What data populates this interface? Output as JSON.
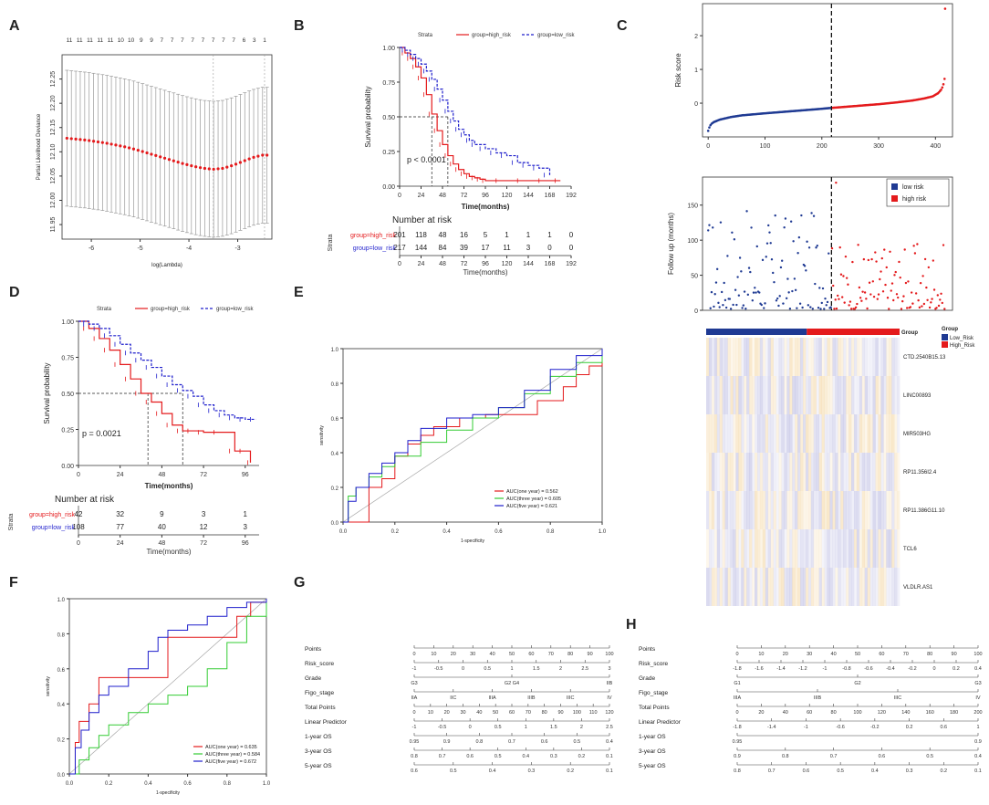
{
  "panels": {
    "A": {
      "label": "A"
    },
    "B": {
      "label": "B"
    },
    "C": {
      "label": "C"
    },
    "D": {
      "label": "D"
    },
    "E": {
      "label": "E"
    },
    "F": {
      "label": "F"
    },
    "G": {
      "label": "G"
    },
    "H": {
      "label": "H"
    }
  },
  "colors": {
    "high": "#e41a1c",
    "low": "#1f1fcc",
    "green": "#33cc33",
    "navy": "#1f3a93",
    "gray": "#9a9a9a"
  },
  "chart_data": [
    {
      "id": "A",
      "type": "line",
      "xlabel": "log(Lambda)",
      "ylabel": "Partial Likelihood Deviance",
      "xlim": [
        -6.6,
        -2.3
      ],
      "ylim": [
        11.92,
        12.3
      ],
      "xticks": [
        "-6",
        "-5",
        "-4",
        "-3"
      ],
      "xtick_values": [
        -6,
        -5,
        -4,
        -3
      ],
      "yticks": [
        "11.95",
        "12.00",
        "12.05",
        "12.10",
        "12.15",
        "12.20",
        "12.25"
      ],
      "ytick_values": [
        11.95,
        12.0,
        12.05,
        12.1,
        12.15,
        12.2,
        12.25
      ],
      "top_counts": [
        "11",
        "11",
        "11",
        "11",
        "11",
        "10",
        "10",
        "9",
        "9",
        "7",
        "7",
        "7",
        "7",
        "7",
        "7",
        "7",
        "7",
        "6",
        "3",
        "1"
      ],
      "x": [
        -6.5,
        -6.3,
        -6.1,
        -5.9,
        -5.7,
        -5.5,
        -5.3,
        -5.1,
        -4.9,
        -4.7,
        -4.5,
        -4.3,
        -4.1,
        -3.9,
        -3.7,
        -3.5,
        -3.3,
        -3.1,
        -2.9,
        -2.7,
        -2.5,
        -2.4
      ],
      "y": [
        12.128,
        12.126,
        12.124,
        12.121,
        12.118,
        12.114,
        12.11,
        12.105,
        12.099,
        12.093,
        12.087,
        12.081,
        12.075,
        12.07,
        12.066,
        12.064,
        12.066,
        12.072,
        12.08,
        12.088,
        12.093,
        12.093
      ],
      "err": 0.14,
      "vlines": [
        -3.5,
        -2.45
      ]
    },
    {
      "id": "B",
      "type": "line",
      "subtype": "kaplan-meier",
      "legend_title": "Strata",
      "legend": [
        "group=high_risk",
        "group=low_risk"
      ],
      "xlabel": "Time(months)",
      "ylabel": "Survival probability",
      "xlim": [
        0,
        192
      ],
      "ylim": [
        0,
        1
      ],
      "xticks": [
        "0",
        "24",
        "48",
        "72",
        "96",
        "120",
        "144",
        "168",
        "192"
      ],
      "xtick_values": [
        0,
        24,
        48,
        72,
        96,
        120,
        144,
        168,
        192
      ],
      "yticks": [
        "0.00",
        "0.25",
        "0.50",
        "0.75",
        "1.00"
      ],
      "ytick_values": [
        0,
        0.25,
        0.5,
        0.75,
        1
      ],
      "pvalue": "p < 0.0001",
      "series": [
        {
          "name": "group=high_risk",
          "x": [
            0,
            6,
            12,
            18,
            24,
            30,
            36,
            42,
            48,
            54,
            60,
            66,
            72,
            78,
            84,
            90,
            96,
            120,
            144,
            168,
            180
          ],
          "y": [
            1.0,
            0.96,
            0.92,
            0.86,
            0.78,
            0.66,
            0.52,
            0.4,
            0.3,
            0.22,
            0.16,
            0.12,
            0.09,
            0.07,
            0.06,
            0.05,
            0.04,
            0.04,
            0.04,
            0.04,
            0.04
          ]
        },
        {
          "name": "group=low_risk",
          "x": [
            0,
            6,
            12,
            18,
            24,
            30,
            36,
            42,
            48,
            54,
            60,
            66,
            72,
            78,
            84,
            96,
            108,
            120,
            132,
            144,
            156,
            168
          ],
          "y": [
            1.0,
            0.98,
            0.95,
            0.92,
            0.88,
            0.83,
            0.77,
            0.7,
            0.62,
            0.54,
            0.47,
            0.41,
            0.37,
            0.33,
            0.3,
            0.27,
            0.24,
            0.22,
            0.17,
            0.15,
            0.13,
            0.08
          ]
        }
      ],
      "risk_table": {
        "title": "Number at risk",
        "strata_label": "Strata",
        "xlabel": "Time(months)",
        "rows": [
          {
            "name": "group=high_risk",
            "values": [
              "201",
              "118",
              "48",
              "16",
              "5",
              "1",
              "1",
              "1",
              "0"
            ]
          },
          {
            "name": "group=low_risk",
            "values": [
              "217",
              "144",
              "84",
              "39",
              "17",
              "11",
              "3",
              "0",
              "0"
            ]
          }
        ]
      }
    },
    {
      "id": "C-risk",
      "type": "scatter",
      "ylabel": "Risk score",
      "xlim": [
        -10,
        430
      ],
      "ylim": [
        -1.0,
        2.95
      ],
      "xticks": [
        "0",
        "100",
        "200",
        "300",
        "400"
      ],
      "xtick_values": [
        0,
        100,
        200,
        300,
        400
      ],
      "yticks": [
        "0",
        "1",
        "2"
      ],
      "ytick_values": [
        0,
        1,
        2
      ],
      "cutoff": 217,
      "x": [
        0,
        2,
        5,
        10,
        20,
        40,
        60,
        80,
        100,
        130,
        160,
        190,
        217,
        240,
        270,
        300,
        330,
        360,
        380,
        395,
        405,
        410,
        413,
        415,
        416,
        417
      ],
      "y": [
        -0.82,
        -0.72,
        -0.62,
        -0.56,
        -0.49,
        -0.41,
        -0.36,
        -0.33,
        -0.3,
        -0.26,
        -0.22,
        -0.18,
        -0.14,
        -0.11,
        -0.07,
        -0.03,
        0.02,
        0.08,
        0.14,
        0.2,
        0.3,
        0.4,
        0.5,
        0.62,
        0.72,
        2.8
      ]
    },
    {
      "id": "C-followup",
      "type": "scatter",
      "ylabel": "Follow up (months)",
      "xlim": [
        -10,
        430
      ],
      "ylim": [
        0,
        190
      ],
      "yticks": [
        "0",
        "50",
        "100",
        "150"
      ],
      "ytick_values": [
        0,
        50,
        100,
        150
      ],
      "legend": [
        "low risk",
        "high risk"
      ],
      "cutoff": 217
    },
    {
      "id": "C-heatmap",
      "type": "heatmap",
      "group_title": "Group",
      "groups": [
        "Low_Risk",
        "High_Risk"
      ],
      "rows": [
        "CTD.2540B15.13",
        "LINC00893",
        "MIR503HG",
        "RP11.356I2.4",
        "RP11.386G11.10",
        "TCL6",
        "VLDLR.AS1"
      ]
    },
    {
      "id": "D",
      "type": "line",
      "subtype": "kaplan-meier",
      "legend_title": "Strata",
      "legend": [
        "group=high_risk",
        "group=low_risk"
      ],
      "xlabel": "Time(months)",
      "ylabel": "Survival probability",
      "xlim": [
        0,
        104
      ],
      "ylim": [
        0,
        1
      ],
      "xticks": [
        "0",
        "24",
        "48",
        "72",
        "96"
      ],
      "xtick_values": [
        0,
        24,
        48,
        72,
        96
      ],
      "yticks": [
        "0.00",
        "0.25",
        "0.50",
        "0.75",
        "1.00"
      ],
      "ytick_values": [
        0,
        0.25,
        0.5,
        0.75,
        1
      ],
      "pvalue": "p = 0.0021",
      "series": [
        {
          "name": "group=high_risk",
          "x": [
            0,
            6,
            12,
            18,
            24,
            30,
            36,
            42,
            48,
            54,
            60,
            66,
            72,
            84,
            90,
            96,
            99
          ],
          "y": [
            1.0,
            0.95,
            0.88,
            0.8,
            0.7,
            0.6,
            0.5,
            0.44,
            0.36,
            0.28,
            0.24,
            0.24,
            0.23,
            0.23,
            0.1,
            0.1,
            0.02
          ]
        },
        {
          "name": "group=low_risk",
          "x": [
            0,
            6,
            12,
            18,
            24,
            30,
            36,
            42,
            48,
            54,
            60,
            66,
            72,
            78,
            84,
            90,
            96,
            102
          ],
          "y": [
            1.0,
            0.98,
            0.95,
            0.9,
            0.84,
            0.78,
            0.73,
            0.68,
            0.62,
            0.56,
            0.52,
            0.48,
            0.42,
            0.38,
            0.35,
            0.33,
            0.32,
            0.32
          ]
        }
      ],
      "risk_table": {
        "title": "Number at risk",
        "strata_label": "Strata",
        "xlabel": "Time(months)",
        "rows": [
          {
            "name": "group=high_risk",
            "values": [
              "42",
              "32",
              "9",
              "3",
              "1"
            ]
          },
          {
            "name": "group=low_risk",
            "values": [
              "108",
              "77",
              "40",
              "12",
              "3"
            ]
          }
        ]
      }
    },
    {
      "id": "E",
      "type": "line",
      "subtype": "roc",
      "xlabel": "1-specificity",
      "ylabel": "sensitivity",
      "xlim": [
        0,
        1
      ],
      "ylim": [
        0,
        1
      ],
      "xticks": [
        "0.0",
        "0.2",
        "0.4",
        "0.6",
        "0.8",
        "1.0"
      ],
      "xtick_values": [
        0,
        0.2,
        0.4,
        0.6,
        0.8,
        1
      ],
      "yticks": [
        "0.0",
        "0.2",
        "0.4",
        "0.6",
        "0.8",
        "1.0"
      ],
      "ytick_values": [
        0,
        0.2,
        0.4,
        0.6,
        0.8,
        1
      ],
      "series": [
        {
          "name": "AUC(one year) = 0.562",
          "color": "#e41a1c",
          "x": [
            0,
            0.05,
            0.1,
            0.1,
            0.15,
            0.2,
            0.25,
            0.3,
            0.35,
            0.45,
            0.55,
            0.65,
            0.75,
            0.85,
            0.9,
            0.95,
            1
          ],
          "y": [
            0,
            0,
            0.05,
            0.2,
            0.25,
            0.38,
            0.45,
            0.5,
            0.55,
            0.6,
            0.62,
            0.62,
            0.7,
            0.78,
            0.85,
            0.9,
            1
          ]
        },
        {
          "name": "AUC(three year) = 0.605",
          "color": "#33cc33",
          "x": [
            0,
            0.02,
            0.05,
            0.1,
            0.15,
            0.2,
            0.3,
            0.4,
            0.5,
            0.6,
            0.7,
            0.8,
            0.9,
            1
          ],
          "y": [
            0,
            0.15,
            0.2,
            0.26,
            0.32,
            0.38,
            0.46,
            0.53,
            0.6,
            0.66,
            0.74,
            0.84,
            0.92,
            1
          ]
        },
        {
          "name": "AUC(five year) = 0.621",
          "color": "#1f1fcc",
          "x": [
            0,
            0.02,
            0.05,
            0.1,
            0.15,
            0.2,
            0.25,
            0.3,
            0.4,
            0.5,
            0.6,
            0.7,
            0.8,
            0.9,
            1
          ],
          "y": [
            0,
            0.12,
            0.2,
            0.28,
            0.34,
            0.4,
            0.47,
            0.54,
            0.6,
            0.62,
            0.66,
            0.76,
            0.88,
            0.96,
            1
          ]
        }
      ]
    },
    {
      "id": "F",
      "type": "line",
      "subtype": "roc",
      "xlabel": "1-specificity",
      "ylabel": "sensitivity",
      "xlim": [
        0,
        1
      ],
      "ylim": [
        0,
        1
      ],
      "xticks": [
        "0.0",
        "0.2",
        "0.4",
        "0.6",
        "0.8",
        "1.0"
      ],
      "xtick_values": [
        0,
        0.2,
        0.4,
        0.6,
        0.8,
        1
      ],
      "yticks": [
        "0.0",
        "0.2",
        "0.4",
        "0.6",
        "0.8",
        "1.0"
      ],
      "ytick_values": [
        0,
        0.2,
        0.4,
        0.6,
        0.8,
        1
      ],
      "series": [
        {
          "name": "AUC(one year) = 0.635",
          "color": "#e41a1c",
          "x": [
            0,
            0.03,
            0.03,
            0.05,
            0.05,
            0.1,
            0.1,
            0.15,
            0.15,
            0.3,
            0.3,
            0.5,
            0.5,
            0.85,
            0.85,
            0.92,
            1
          ],
          "y": [
            0,
            0,
            0.18,
            0.18,
            0.3,
            0.3,
            0.4,
            0.4,
            0.55,
            0.55,
            0.55,
            0.75,
            0.78,
            0.78,
            0.9,
            0.98,
            1
          ]
        },
        {
          "name": "AUC(three year) = 0.584",
          "color": "#33cc33",
          "x": [
            0,
            0.05,
            0.1,
            0.15,
            0.2,
            0.3,
            0.4,
            0.5,
            0.6,
            0.7,
            0.8,
            0.9,
            1
          ],
          "y": [
            0,
            0.08,
            0.15,
            0.22,
            0.28,
            0.35,
            0.4,
            0.45,
            0.5,
            0.6,
            0.75,
            0.9,
            1
          ]
        },
        {
          "name": "AUC(five year) = 0.672",
          "color": "#1f1fcc",
          "x": [
            0,
            0.03,
            0.06,
            0.1,
            0.15,
            0.2,
            0.3,
            0.4,
            0.45,
            0.5,
            0.6,
            0.7,
            0.8,
            0.9,
            1
          ],
          "y": [
            0,
            0.15,
            0.25,
            0.35,
            0.45,
            0.5,
            0.6,
            0.7,
            0.78,
            0.82,
            0.85,
            0.9,
            0.95,
            0.98,
            1
          ]
        }
      ]
    }
  ],
  "nomogram_G": [
    {
      "label": "Points",
      "ticks": [
        "0",
        "10",
        "20",
        "30",
        "40",
        "50",
        "60",
        "70",
        "80",
        "90",
        "100"
      ]
    },
    {
      "label": "Risk_score",
      "ticks": [
        "-1",
        "-0.5",
        "0",
        "0.5",
        "1",
        "1.5",
        "2",
        "2.5",
        "3"
      ]
    },
    {
      "label": "Grade",
      "ticks": [
        "G3",
        "G2 G4",
        "IIB"
      ]
    },
    {
      "label": "Figo_stage",
      "ticks": [
        "IIA",
        "IIC",
        "IIIA",
        "IIIB",
        "IIIC",
        "IV"
      ]
    },
    {
      "label": "Total Points",
      "ticks": [
        "0",
        "10",
        "20",
        "30",
        "40",
        "50",
        "60",
        "70",
        "80",
        "90",
        "100",
        "110",
        "120"
      ]
    },
    {
      "label": "Linear Predictor",
      "ticks": [
        "-1",
        "-0.5",
        "0",
        "0.5",
        "1",
        "1.5",
        "2",
        "2.5"
      ]
    },
    {
      "label": "1-year OS",
      "ticks": [
        "0.95",
        "0.9",
        "0.8",
        "0.7",
        "0.6",
        "0.5",
        "0.4"
      ]
    },
    {
      "label": "3-year OS",
      "ticks": [
        "0.8",
        "0.7",
        "0.6",
        "0.5",
        "0.4",
        "0.3",
        "0.2",
        "0.1"
      ]
    },
    {
      "label": "5-year OS",
      "ticks": [
        "0.6",
        "0.5",
        "0.4",
        "0.3",
        "0.2",
        "0.1"
      ]
    }
  ],
  "nomogram_H": [
    {
      "label": "Points",
      "ticks": [
        "0",
        "10",
        "20",
        "30",
        "40",
        "50",
        "60",
        "70",
        "80",
        "90",
        "100"
      ]
    },
    {
      "label": "Risk_score",
      "ticks": [
        "-1.8",
        "-1.6",
        "-1.4",
        "-1.2",
        "-1",
        "-0.8",
        "-0.6",
        "-0.4",
        "-0.2",
        "0",
        "0.2",
        "0.4"
      ]
    },
    {
      "label": "Grade",
      "ticks": [
        "G1",
        "G2",
        "G3"
      ]
    },
    {
      "label": "Figo_stage",
      "ticks": [
        "IIIA",
        "IIIB",
        "IIIC",
        "IV"
      ]
    },
    {
      "label": "Total Points",
      "ticks": [
        "0",
        "20",
        "40",
        "60",
        "80",
        "100",
        "120",
        "140",
        "160",
        "180",
        "200"
      ]
    },
    {
      "label": "Linear Predictor",
      "ticks": [
        "-1.8",
        "-1.4",
        "-1",
        "-0.6",
        "-0.2",
        "0.2",
        "0.6",
        "1"
      ]
    },
    {
      "label": "1-year OS",
      "ticks": [
        "0.95",
        "0.9"
      ]
    },
    {
      "label": "3-year OS",
      "ticks": [
        "0.9",
        "0.8",
        "0.7",
        "0.6",
        "0.5",
        "0.4"
      ]
    },
    {
      "label": "5-year OS",
      "ticks": [
        "0.8",
        "0.7",
        "0.6",
        "0.5",
        "0.4",
        "0.3",
        "0.2",
        "0.1"
      ]
    }
  ]
}
